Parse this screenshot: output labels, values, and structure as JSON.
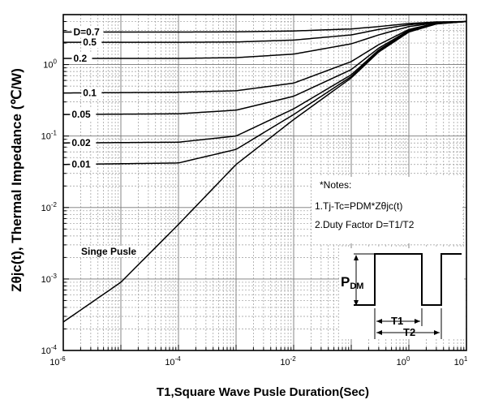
{
  "chart_data": {
    "type": "line",
    "xlabel": "T1,Square Wave Pusle Duration(Sec)",
    "ylabel": "Zθjc(t), Thermal Impedance (℃/W)",
    "xscale": "log",
    "yscale": "log",
    "xlim": [
      1e-06,
      10
    ],
    "ylim": [
      0.0001,
      5
    ],
    "grid": true,
    "x_ticks": [
      {
        "value": 1e-06,
        "base": "10",
        "exp": "-6"
      },
      {
        "value": 0.0001,
        "base": "10",
        "exp": "-4"
      },
      {
        "value": 0.01,
        "base": "10",
        "exp": "-2"
      },
      {
        "value": 1,
        "base": "10",
        "exp": "0"
      },
      {
        "value": 10,
        "base": "10",
        "exp": "1"
      }
    ],
    "y_ticks": [
      {
        "value": 0.0001,
        "base": "10",
        "exp": "-4"
      },
      {
        "value": 0.001,
        "base": "10",
        "exp": "-3"
      },
      {
        "value": 0.01,
        "base": "10",
        "exp": "-2"
      },
      {
        "value": 0.1,
        "base": "10",
        "exp": "-1"
      },
      {
        "value": 1,
        "base": "10",
        "exp": "0"
      }
    ],
    "series": [
      {
        "name": "D=0.7",
        "label": "D=0.7",
        "points": [
          [
            1e-06,
            2.85
          ],
          [
            0.0001,
            2.85
          ],
          [
            0.001,
            2.87
          ],
          [
            0.01,
            2.95
          ],
          [
            0.1,
            3.15
          ],
          [
            0.3,
            3.4
          ],
          [
            1,
            3.75
          ],
          [
            3,
            3.95
          ],
          [
            10,
            4.0
          ]
        ]
      },
      {
        "name": "0.5",
        "label": "0.5",
        "points": [
          [
            1e-06,
            2.05
          ],
          [
            0.0001,
            2.05
          ],
          [
            0.001,
            2.07
          ],
          [
            0.01,
            2.2
          ],
          [
            0.1,
            2.6
          ],
          [
            0.3,
            3.1
          ],
          [
            1,
            3.6
          ],
          [
            3,
            3.9
          ],
          [
            10,
            4.0
          ]
        ]
      },
      {
        "name": "0.2",
        "label": "0.2",
        "points": [
          [
            1e-06,
            1.22
          ],
          [
            0.0001,
            1.22
          ],
          [
            0.001,
            1.25
          ],
          [
            0.01,
            1.4
          ],
          [
            0.1,
            1.95
          ],
          [
            0.3,
            2.6
          ],
          [
            1,
            3.4
          ],
          [
            3,
            3.85
          ],
          [
            10,
            4.0
          ]
        ]
      },
      {
        "name": "0.1",
        "label": "0.1",
        "points": [
          [
            1e-06,
            0.4
          ],
          [
            0.0001,
            0.41
          ],
          [
            0.001,
            0.43
          ],
          [
            0.01,
            0.55
          ],
          [
            0.1,
            1.1
          ],
          [
            0.3,
            1.9
          ],
          [
            1,
            3.1
          ],
          [
            3,
            3.8
          ],
          [
            10,
            4.0
          ]
        ]
      },
      {
        "name": "0.05",
        "label": "0.05",
        "points": [
          [
            1e-06,
            0.2
          ],
          [
            0.0001,
            0.205
          ],
          [
            0.001,
            0.23
          ],
          [
            0.01,
            0.36
          ],
          [
            0.1,
            0.85
          ],
          [
            0.3,
            1.7
          ],
          [
            1,
            3.0
          ],
          [
            3,
            3.75
          ],
          [
            10,
            4.0
          ]
        ]
      },
      {
        "name": "0.02",
        "label": "0.02",
        "points": [
          [
            1e-06,
            0.08
          ],
          [
            0.0001,
            0.082
          ],
          [
            0.001,
            0.1
          ],
          [
            0.01,
            0.24
          ],
          [
            0.1,
            0.72
          ],
          [
            0.3,
            1.6
          ],
          [
            1,
            2.95
          ],
          [
            3,
            3.75
          ],
          [
            10,
            4.0
          ]
        ]
      },
      {
        "name": "0.01",
        "label": "0.01",
        "points": [
          [
            1e-06,
            0.04
          ],
          [
            0.0001,
            0.042
          ],
          [
            0.001,
            0.065
          ],
          [
            0.01,
            0.2
          ],
          [
            0.1,
            0.68
          ],
          [
            0.3,
            1.55
          ],
          [
            1,
            2.9
          ],
          [
            3,
            3.72
          ],
          [
            10,
            4.0
          ]
        ]
      },
      {
        "name": "Singe Pusle",
        "label": "Singe Pusle",
        "points": [
          [
            1e-06,
            0.00025
          ],
          [
            1e-05,
            0.0009
          ],
          [
            0.0001,
            0.0058
          ],
          [
            0.001,
            0.04
          ],
          [
            0.01,
            0.17
          ],
          [
            0.1,
            0.65
          ],
          [
            0.3,
            1.5
          ],
          [
            1,
            2.85
          ],
          [
            3,
            3.7
          ],
          [
            10,
            4.0
          ]
        ]
      }
    ],
    "notes": {
      "title": "*Notes:",
      "line1": "1.Tj-Tc=PDM*Zθjc(t)",
      "line2": "2.Duty Factor D=T1/T2"
    },
    "inset": {
      "pdm_label": "P",
      "pdm_sub": "DM",
      "t1_label": "T1",
      "t2_label": "T2"
    }
  }
}
